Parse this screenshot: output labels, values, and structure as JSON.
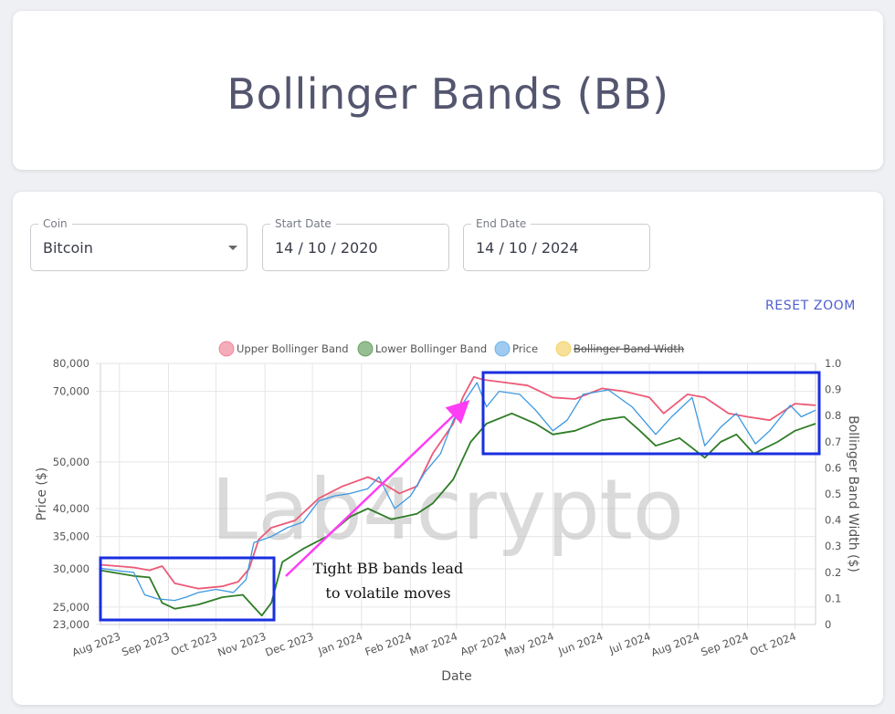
{
  "page": {
    "title": "Bollinger Bands (BB)"
  },
  "controls": {
    "coin": {
      "label": "Coin",
      "value": "Bitcoin"
    },
    "start_date": {
      "label": "Start Date",
      "value": "14 / 10 / 2020"
    },
    "end_date": {
      "label": "End Date",
      "value": "14 / 10 / 2024"
    },
    "reset_zoom": "RESET ZOOM"
  },
  "watermark": "Lab4crypto",
  "annotation": {
    "line1": "Tight BB bands lead",
    "line2": "to volatile moves"
  },
  "colors": {
    "upper": "#ec5a77",
    "lower": "#2f7d27",
    "price": "#3d98e0",
    "width": "#f1c232",
    "box": "#1a2fe0",
    "arrow": "#ff3df5"
  },
  "chart_data": {
    "type": "line",
    "xlabel": "Date",
    "ylabel": "Price ($)",
    "y2label": "Bollinger Band Width ($)",
    "y_scale": "log",
    "ylim": [
      23000,
      80000
    ],
    "y2lim": [
      0,
      1
    ],
    "x_ticks": [
      "Aug 2023",
      "Sep 2023",
      "Oct 2023",
      "Nov 2023",
      "Dec 2023",
      "Jan 2024",
      "Feb 2024",
      "Mar 2024",
      "Apr 2024",
      "May 2024",
      "Jun 2024",
      "Jul 2024",
      "Aug 2024",
      "Sep 2024",
      "Oct 2024"
    ],
    "y_ticks": [
      "23,000",
      "25,000",
      "30,000",
      "35,000",
      "40,000",
      "50,000",
      "70,000",
      "80,000"
    ],
    "y_tick_values": [
      23000,
      25000,
      30000,
      35000,
      40000,
      50000,
      70000,
      80000
    ],
    "y2_ticks": [
      "0",
      "0.1",
      "0.2",
      "0.3",
      "0.4",
      "0.5",
      "0.6",
      "0.7",
      "0.8",
      "0.9",
      "1.0"
    ],
    "legend_placement": "top",
    "legend": [
      {
        "name": "Upper Bollinger Band",
        "hidden": false
      },
      {
        "name": "Lower Bollinger Band",
        "hidden": false
      },
      {
        "name": "Price",
        "hidden": false
      },
      {
        "name": "Bollinger Band Width",
        "hidden": true
      }
    ],
    "x_start": "2023-07-20",
    "x_end": "2024-10-14",
    "series": [
      {
        "name": "Upper Bollinger Band",
        "points": [
          [
            "2023-07-20",
            30600
          ],
          [
            "2023-08-10",
            30200
          ],
          [
            "2023-08-20",
            29800
          ],
          [
            "2023-08-28",
            30400
          ],
          [
            "2023-09-05",
            28000
          ],
          [
            "2023-09-20",
            27300
          ],
          [
            "2023-10-05",
            27600
          ],
          [
            "2023-10-15",
            28200
          ],
          [
            "2023-10-22",
            30000
          ],
          [
            "2023-10-28",
            34500
          ],
          [
            "2023-11-05",
            36500
          ],
          [
            "2023-11-20",
            37800
          ],
          [
            "2023-12-05",
            42000
          ],
          [
            "2023-12-20",
            44500
          ],
          [
            "2024-01-05",
            46500
          ],
          [
            "2024-01-15",
            45000
          ],
          [
            "2024-01-25",
            43000
          ],
          [
            "2024-02-05",
            44500
          ],
          [
            "2024-02-15",
            52000
          ],
          [
            "2024-02-28",
            60000
          ],
          [
            "2024-03-05",
            68000
          ],
          [
            "2024-03-12",
            75000
          ],
          [
            "2024-03-18",
            74000
          ],
          [
            "2024-04-01",
            73000
          ],
          [
            "2024-04-15",
            72000
          ],
          [
            "2024-05-01",
            68000
          ],
          [
            "2024-05-15",
            67500
          ],
          [
            "2024-06-01",
            71000
          ],
          [
            "2024-06-15",
            70000
          ],
          [
            "2024-07-01",
            68000
          ],
          [
            "2024-07-10",
            63000
          ],
          [
            "2024-07-25",
            69000
          ],
          [
            "2024-08-05",
            68000
          ],
          [
            "2024-08-20",
            63000
          ],
          [
            "2024-09-01",
            62000
          ],
          [
            "2024-09-15",
            61000
          ],
          [
            "2024-10-01",
            66000
          ],
          [
            "2024-10-14",
            65500
          ]
        ]
      },
      {
        "name": "Lower Bollinger Band",
        "points": [
          [
            "2023-07-20",
            29800
          ],
          [
            "2023-08-10",
            29000
          ],
          [
            "2023-08-20",
            28800
          ],
          [
            "2023-08-28",
            25500
          ],
          [
            "2023-09-05",
            24800
          ],
          [
            "2023-09-20",
            25300
          ],
          [
            "2023-10-05",
            26200
          ],
          [
            "2023-10-18",
            26500
          ],
          [
            "2023-10-25",
            25000
          ],
          [
            "2023-10-30",
            24000
          ],
          [
            "2023-11-05",
            25500
          ],
          [
            "2023-11-12",
            31000
          ],
          [
            "2023-11-25",
            33000
          ],
          [
            "2023-12-10",
            35000
          ],
          [
            "2023-12-25",
            38500
          ],
          [
            "2024-01-05",
            40000
          ],
          [
            "2024-01-20",
            38000
          ],
          [
            "2024-02-05",
            39000
          ],
          [
            "2024-02-15",
            41000
          ],
          [
            "2024-02-28",
            46000
          ],
          [
            "2024-03-10",
            55000
          ],
          [
            "2024-03-20",
            60000
          ],
          [
            "2024-04-05",
            63000
          ],
          [
            "2024-04-20",
            60000
          ],
          [
            "2024-05-01",
            57000
          ],
          [
            "2024-05-15",
            58000
          ],
          [
            "2024-06-01",
            61000
          ],
          [
            "2024-06-15",
            62000
          ],
          [
            "2024-06-25",
            58000
          ],
          [
            "2024-07-05",
            54000
          ],
          [
            "2024-07-20",
            56000
          ],
          [
            "2024-08-05",
            51000
          ],
          [
            "2024-08-15",
            55000
          ],
          [
            "2024-08-25",
            57000
          ],
          [
            "2024-09-05",
            52000
          ],
          [
            "2024-09-20",
            55000
          ],
          [
            "2024-10-01",
            58000
          ],
          [
            "2024-10-14",
            60000
          ]
        ]
      },
      {
        "name": "Price",
        "points": [
          [
            "2023-07-20",
            30100
          ],
          [
            "2023-08-01",
            29700
          ],
          [
            "2023-08-10",
            29500
          ],
          [
            "2023-08-17",
            26500
          ],
          [
            "2023-08-25",
            26000
          ],
          [
            "2023-09-05",
            25800
          ],
          [
            "2023-09-12",
            26200
          ],
          [
            "2023-09-20",
            26800
          ],
          [
            "2023-10-01",
            27200
          ],
          [
            "2023-10-12",
            26800
          ],
          [
            "2023-10-20",
            28500
          ],
          [
            "2023-10-25",
            34000
          ],
          [
            "2023-11-05",
            35000
          ],
          [
            "2023-11-15",
            36500
          ],
          [
            "2023-11-25",
            37500
          ],
          [
            "2023-12-05",
            41500
          ],
          [
            "2023-12-15",
            42500
          ],
          [
            "2023-12-25",
            43000
          ],
          [
            "2024-01-05",
            44000
          ],
          [
            "2024-01-12",
            46500
          ],
          [
            "2024-01-22",
            40000
          ],
          [
            "2024-02-01",
            42500
          ],
          [
            "2024-02-10",
            47500
          ],
          [
            "2024-02-20",
            52000
          ],
          [
            "2024-02-28",
            61000
          ],
          [
            "2024-03-05",
            66000
          ],
          [
            "2024-03-14",
            73000
          ],
          [
            "2024-03-20",
            65000
          ],
          [
            "2024-03-28",
            70000
          ],
          [
            "2024-04-10",
            69000
          ],
          [
            "2024-04-20",
            64000
          ],
          [
            "2024-05-01",
            58000
          ],
          [
            "2024-05-10",
            61000
          ],
          [
            "2024-05-20",
            69000
          ],
          [
            "2024-06-05",
            70500
          ],
          [
            "2024-06-20",
            65000
          ],
          [
            "2024-07-05",
            57000
          ],
          [
            "2024-07-15",
            62000
          ],
          [
            "2024-07-28",
            68000
          ],
          [
            "2024-08-05",
            54000
          ],
          [
            "2024-08-15",
            59000
          ],
          [
            "2024-08-25",
            63000
          ],
          [
            "2024-09-06",
            54500
          ],
          [
            "2024-09-15",
            58000
          ],
          [
            "2024-09-28",
            65500
          ],
          [
            "2024-10-05",
            62000
          ],
          [
            "2024-10-14",
            64000
          ]
        ]
      }
    ]
  }
}
